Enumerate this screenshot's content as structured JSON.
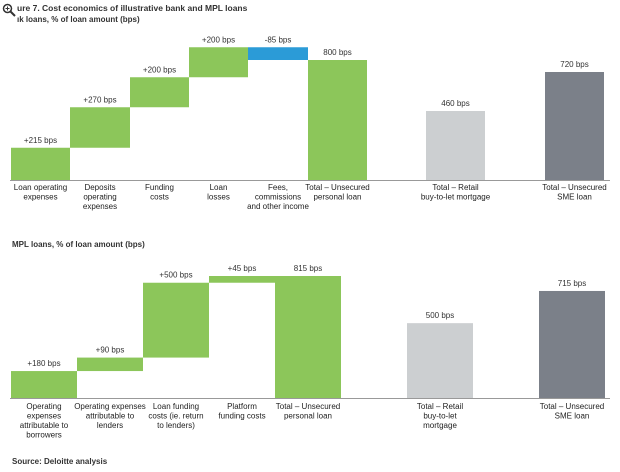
{
  "header": {
    "title": "ure 7. Cost economics of illustrative bank and MPL loans",
    "subtitle": "ık loans, % of loan amount (bps)"
  },
  "colors": {
    "green": "#8cc65a",
    "blue": "#2b9bd7",
    "light_grey": "#cccfd1",
    "dark_grey": "#7b8089",
    "axis": "#999999"
  },
  "chart_data": [
    {
      "type": "bar",
      "subtype": "waterfall",
      "title": "ık loans, % of loan amount (bps)",
      "unit": "bps",
      "ylim": [
        0,
        800
      ],
      "steps": [
        {
          "category": "Loan operating\nexpenses",
          "value": 215,
          "label": "+215 bps",
          "kind": "increase",
          "color": "green"
        },
        {
          "category": "Deposits\noperating\nexpenses",
          "value": 270,
          "label": "+270 bps",
          "kind": "increase",
          "color": "green"
        },
        {
          "category": "Funding\ncosts",
          "value": 200,
          "label": "+200 bps",
          "kind": "increase",
          "color": "green"
        },
        {
          "category": "Loan\nlosses",
          "value": 200,
          "label": "+200 bps",
          "kind": "increase",
          "color": "green"
        },
        {
          "category": "Fees,\ncommissions\nand other income",
          "value": -85,
          "label": "-85 bps",
          "kind": "decrease",
          "color": "blue"
        },
        {
          "category": "Total – Unsecured\npersonal loan",
          "value": 800,
          "label": "800 bps",
          "kind": "total",
          "color": "green"
        },
        {
          "category": "Total – Retail\nbuy-to-let mortgage",
          "value": 460,
          "label": "460 bps",
          "kind": "total",
          "color": "light_grey"
        },
        {
          "category": "Total – Unsecured\nSME loan",
          "value": 720,
          "label": "720 bps",
          "kind": "total",
          "color": "dark_grey"
        }
      ]
    },
    {
      "type": "bar",
      "subtype": "waterfall",
      "title": "MPL loans, % of loan amount (bps)",
      "unit": "bps",
      "ylim": [
        0,
        815
      ],
      "steps": [
        {
          "category": "Operating\nexpenses\nattributable to\nborrowers",
          "value": 180,
          "label": "+180 bps",
          "kind": "increase",
          "color": "green"
        },
        {
          "category": "Operating expenses\nattributable to\nlenders",
          "value": 90,
          "label": "+90 bps",
          "kind": "increase",
          "color": "green"
        },
        {
          "category": "Loan funding\ncosts (ie. return\nto lenders)",
          "value": 500,
          "label": "+500 bps",
          "kind": "increase",
          "color": "green"
        },
        {
          "category": "Platform\nfunding costs",
          "value": 45,
          "label": "+45 bps",
          "kind": "increase",
          "color": "green"
        },
        {
          "category": "Total – Unsecured\npersonal loan",
          "value": 815,
          "label": "815 bps",
          "kind": "total",
          "color": "green"
        },
        {
          "category": "Total – Retail\nbuy-to-let\nmortgage",
          "value": 500,
          "label": "500 bps",
          "kind": "total",
          "color": "light_grey"
        },
        {
          "category": "Total – Unsecured\nSME loan",
          "value": 715,
          "label": "715 bps",
          "kind": "total",
          "color": "dark_grey"
        }
      ]
    }
  ],
  "footer": {
    "source": "Source: Deloitte analysis"
  }
}
